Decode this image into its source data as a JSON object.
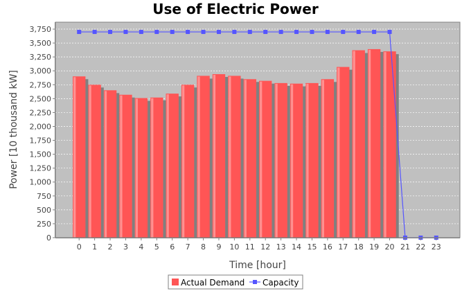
{
  "chart_data": {
    "type": "bar",
    "title": "Use of Electric Power",
    "xlabel": "Time [hour]",
    "ylabel": "Power [10 thousand kW]",
    "ylim": [
      0,
      3875
    ],
    "yticks": [
      0,
      250,
      500,
      750,
      1000,
      1250,
      1500,
      1750,
      2000,
      2250,
      2500,
      2750,
      3000,
      3250,
      3500,
      3750
    ],
    "ytick_labels": [
      "0",
      "250",
      "500",
      "750",
      "1,000",
      "1,250",
      "1,500",
      "1,750",
      "2,000",
      "2,250",
      "2,500",
      "2,750",
      "3,000",
      "3,250",
      "3,500",
      "3,750"
    ],
    "categories": [
      "0",
      "1",
      "2",
      "3",
      "4",
      "5",
      "6",
      "7",
      "8",
      "9",
      "10",
      "11",
      "12",
      "13",
      "14",
      "15",
      "16",
      "17",
      "18",
      "19",
      "20",
      "21",
      "22",
      "23"
    ],
    "grid": true,
    "legend_position": "bottom",
    "colors": {
      "plot_background": "#c0c0c0",
      "bar": "#ff5555",
      "line": "#5555ff"
    },
    "series": [
      {
        "name": "Actual Demand",
        "kind": "bar",
        "values": [
          2900,
          2750,
          2650,
          2570,
          2510,
          2520,
          2590,
          2750,
          2910,
          2940,
          2910,
          2850,
          2820,
          2780,
          2770,
          2780,
          2850,
          3070,
          3370,
          3390,
          3350,
          null,
          null,
          null
        ]
      },
      {
        "name": "Capacity",
        "kind": "line",
        "values": [
          3700,
          3700,
          3700,
          3700,
          3700,
          3700,
          3700,
          3700,
          3700,
          3700,
          3700,
          3700,
          3700,
          3700,
          3700,
          3700,
          3700,
          3700,
          3700,
          3700,
          3700,
          0,
          0,
          0
        ]
      }
    ]
  }
}
